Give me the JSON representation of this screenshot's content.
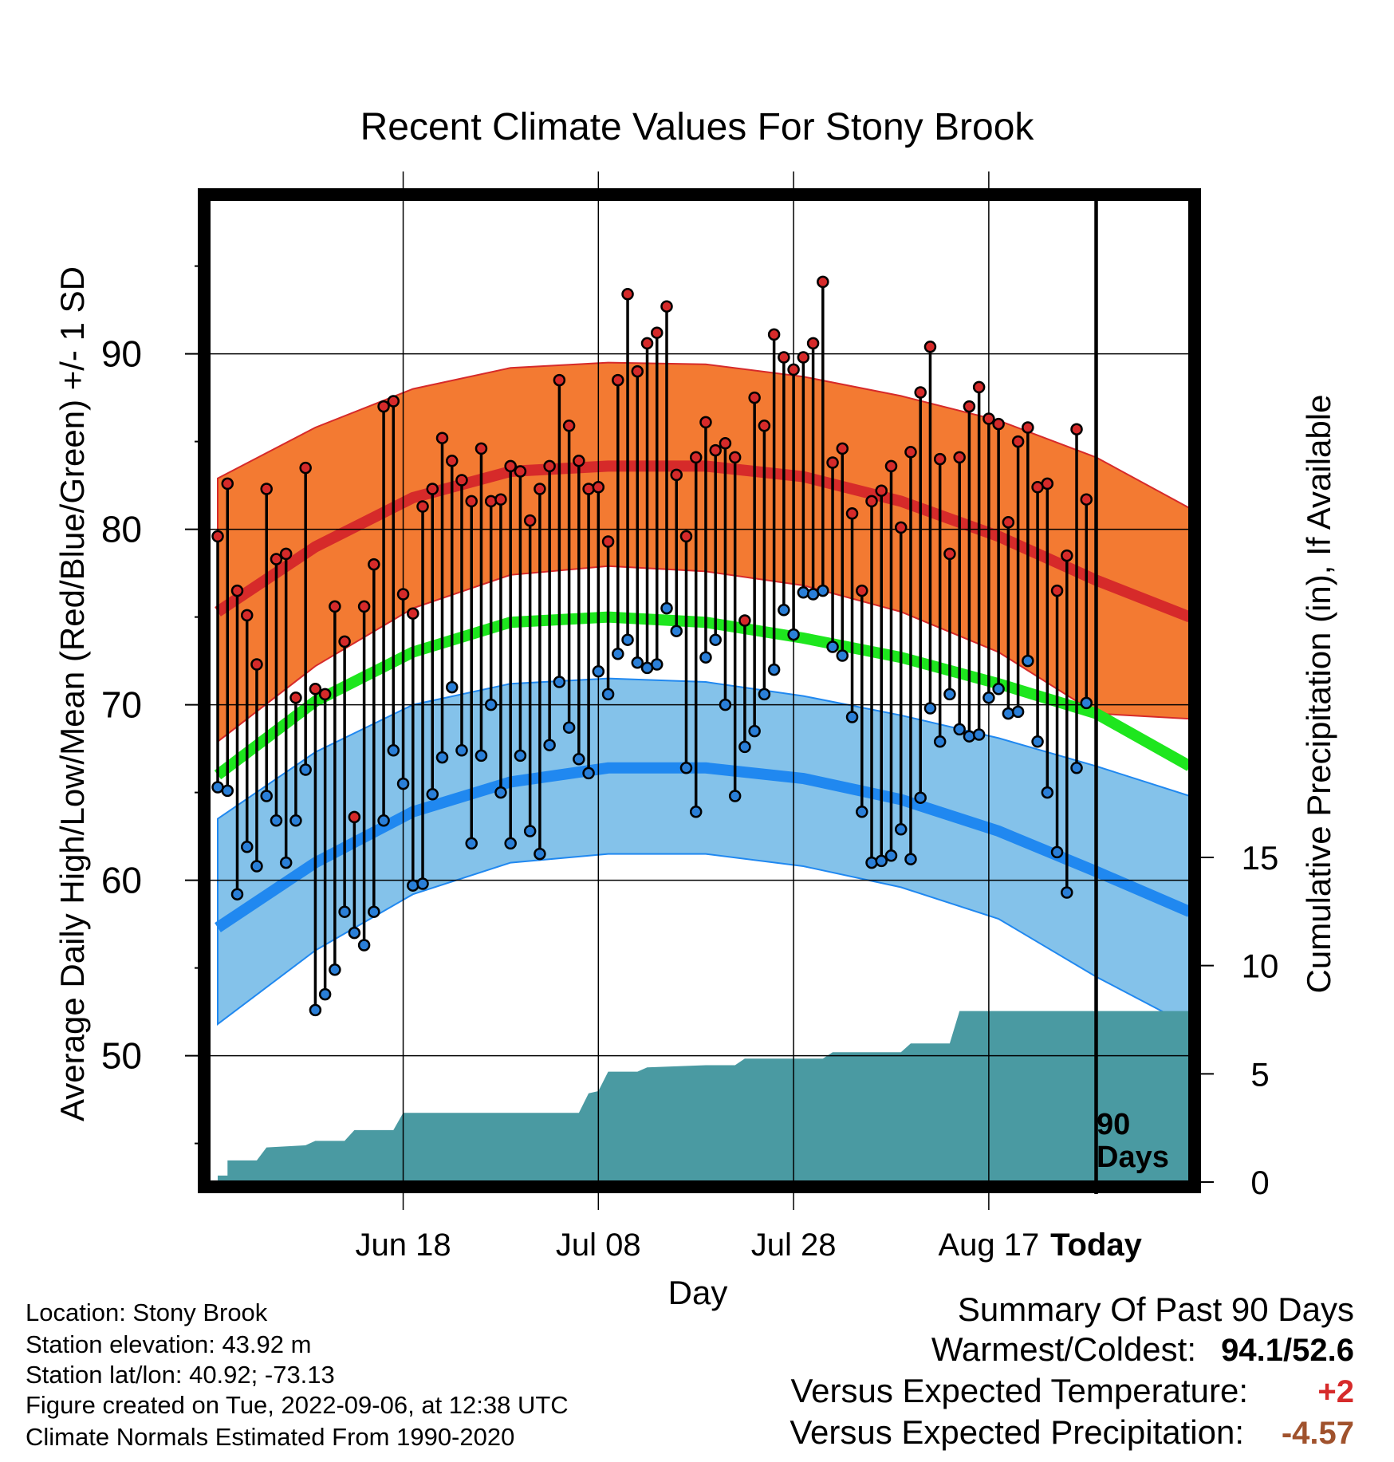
{
  "chart_data": {
    "type": "line",
    "title": "Recent Climate Values For Stony Brook",
    "xlabel": "Day",
    "ylabel": "Average Daily High/Low/Mean (Red/Blue/Green) +/- 1 SD",
    "y2label": "Cumulative Precipitation (in), If Available",
    "yticks": [
      "50",
      "60",
      "70",
      "80",
      "90"
    ],
    "y2ticks": [
      "0",
      "5",
      "10",
      "15"
    ],
    "xticks": [
      "Jun 18",
      "Jul 08",
      "Jul 28",
      "Aug 17",
      "Today"
    ],
    "ylim": [
      42.8,
      98.8
    ],
    "y2lim": [
      0,
      45.4
    ],
    "xlim": [
      -0.9,
      99.6
    ],
    "today_day": 90,
    "today_label_lines": [
      "90",
      "Days"
    ],
    "normals": {
      "days": [
        0,
        10,
        20,
        30,
        40,
        50,
        60,
        70,
        80,
        90,
        99.6
      ],
      "high_mean": [
        75.3,
        79.0,
        81.8,
        83.3,
        83.6,
        83.6,
        83.0,
        81.6,
        79.6,
        77.1,
        75.0
      ],
      "high_upper": [
        82.9,
        85.8,
        88.0,
        89.2,
        89.5,
        89.4,
        88.7,
        87.6,
        86.2,
        84.1,
        81.2
      ],
      "high_lower": [
        67.9,
        72.2,
        75.5,
        77.4,
        77.9,
        77.6,
        76.8,
        75.3,
        73.0,
        69.5,
        69.2
      ],
      "mean": [
        66.0,
        70.2,
        73.0,
        74.7,
        75.0,
        74.7,
        73.8,
        72.7,
        71.2,
        69.5,
        66.5
      ],
      "low_mean": [
        57.3,
        61.0,
        63.9,
        65.6,
        66.4,
        66.4,
        65.8,
        64.6,
        62.8,
        60.5,
        58.2
      ],
      "low_upper": [
        63.5,
        67.3,
        70.0,
        71.2,
        71.5,
        71.3,
        70.5,
        69.4,
        68.1,
        66.5,
        64.8
      ],
      "low_lower": [
        51.8,
        56.0,
        59.2,
        61.0,
        61.5,
        61.5,
        60.8,
        59.6,
        57.8,
        54.5,
        51.7
      ]
    },
    "highs": [
      79.6,
      82.6,
      76.5,
      75.1,
      72.3,
      82.3,
      78.3,
      78.6,
      70.4,
      83.5,
      70.9,
      70.6,
      75.6,
      73.6,
      63.6,
      75.6,
      78.0,
      87.0,
      87.3,
      76.3,
      75.2,
      81.3,
      82.3,
      85.2,
      83.9,
      82.8,
      81.6,
      84.6,
      81.6,
      81.7,
      83.6,
      83.3,
      80.5,
      82.3,
      83.6,
      88.5,
      85.9,
      83.9,
      82.3,
      82.4,
      79.3,
      88.5,
      93.4,
      89.0,
      90.6,
      91.2,
      92.7,
      83.1,
      79.6,
      84.1,
      86.1,
      84.5,
      84.9,
      84.1,
      74.8,
      87.5,
      85.9,
      91.1,
      89.8,
      89.1,
      89.8,
      90.6,
      94.1,
      83.8,
      84.6,
      80.9,
      76.5,
      81.6,
      82.2,
      83.6,
      80.1,
      84.4,
      87.8,
      90.4,
      84.0,
      78.6,
      84.1,
      87.0,
      88.1,
      86.3,
      86.0,
      80.4,
      85.0,
      85.8,
      82.4,
      82.6,
      76.5,
      78.5,
      85.7,
      81.7
    ],
    "lows": [
      65.3,
      65.1,
      59.2,
      61.9,
      60.8,
      64.8,
      63.4,
      61.0,
      63.4,
      66.3,
      52.6,
      53.5,
      54.9,
      58.2,
      57.0,
      56.3,
      58.2,
      63.4,
      67.4,
      65.5,
      59.7,
      59.8,
      64.9,
      67.0,
      71.0,
      67.4,
      62.1,
      67.1,
      70.0,
      65.0,
      62.1,
      67.1,
      62.8,
      61.5,
      67.7,
      71.3,
      68.7,
      66.9,
      66.1,
      71.9,
      70.6,
      72.9,
      73.7,
      72.4,
      72.1,
      72.3,
      75.5,
      74.2,
      66.4,
      63.9,
      72.7,
      73.7,
      70.0,
      64.8,
      67.6,
      68.5,
      70.6,
      72.0,
      75.4,
      74.0,
      76.4,
      76.3,
      76.5,
      73.3,
      72.8,
      69.3,
      63.9,
      61.0,
      61.1,
      61.4,
      62.9,
      61.2,
      64.7,
      69.8,
      67.9,
      70.6,
      68.6,
      68.2,
      68.3,
      70.4,
      70.9,
      69.5,
      69.6,
      72.5,
      67.9,
      65.0,
      61.6,
      59.3,
      66.4,
      70.1
    ],
    "precip_steps": [
      [
        0,
        0.3
      ],
      [
        1,
        0.3
      ],
      [
        1,
        1.0
      ],
      [
        4,
        1.0
      ],
      [
        5,
        1.6
      ],
      [
        9,
        1.7
      ],
      [
        10,
        1.9
      ],
      [
        13,
        1.9
      ],
      [
        14,
        2.4
      ],
      [
        18,
        2.4
      ],
      [
        19,
        3.2
      ],
      [
        37,
        3.2
      ],
      [
        38,
        4.1
      ],
      [
        39,
        4.2
      ],
      [
        40,
        5.1
      ],
      [
        43,
        5.1
      ],
      [
        44,
        5.3
      ],
      [
        50,
        5.4
      ],
      [
        53,
        5.4
      ],
      [
        54,
        5.7
      ],
      [
        62,
        5.7
      ],
      [
        63,
        6.0
      ],
      [
        70,
        6.0
      ],
      [
        71,
        6.4
      ],
      [
        75,
        6.4
      ],
      [
        76,
        7.9
      ],
      [
        90,
        7.9
      ],
      [
        99.6,
        7.9
      ]
    ],
    "colors": {
      "high_band": "#f37a32",
      "high_line": "#d62a2a",
      "mean_line": "#1ee61e",
      "low_band": "#84c2ea",
      "low_line": "#2088f0",
      "precip": "#4a9aa2",
      "high_marker": "#d62a2a",
      "low_marker": "#2a7fd8"
    }
  },
  "info": {
    "location": "Location: Stony Brook",
    "elevation": "Station elevation: 43.92 m",
    "latlon": "Station lat/lon: 40.92; -73.13",
    "created": "Figure created on Tue, 2022-09-06, at 12:38 UTC",
    "normals": "Climate Normals Estimated From 1990-2020"
  },
  "summary": {
    "title": "Summary Of Past 90 Days",
    "warm_cold_label": "Warmest/Coldest:",
    "warm_value": "94.1",
    "slash": "/",
    "cold_value": "52.6",
    "temp_label": "Versus Expected Temperature:",
    "temp_value": "+2",
    "precip_label": "Versus Expected Precipitation:",
    "precip_value": "-4.57",
    "temp_color": "#d62a2a",
    "precip_color": "#a0522d"
  }
}
